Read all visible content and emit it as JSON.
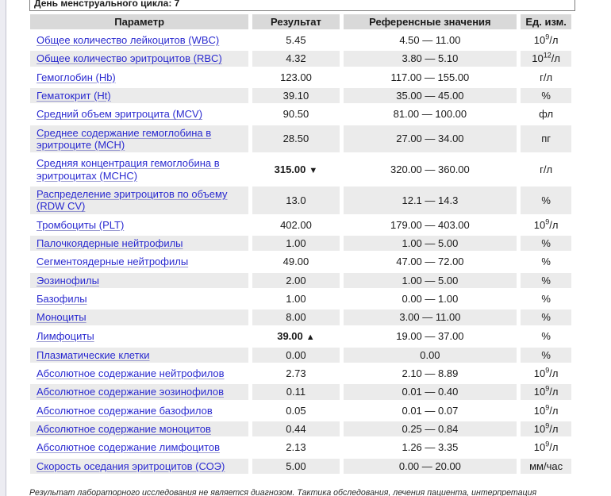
{
  "colors": {
    "link": "#2a2ad0",
    "row_alt": "#ebebeb",
    "header_bg": "#d9d9d9",
    "text": "#1a1a1a"
  },
  "top_note": {
    "text": "День менструального цикла: 7"
  },
  "table": {
    "headers": [
      "Параметр",
      "Результат",
      "Референсные значения",
      "Ед. изм."
    ],
    "rows": [
      {
        "param": "Общее количество лейкоцитов (WBC)",
        "result": "5.45",
        "flag": "",
        "ref": "4.50 — 11.00",
        "unit": "10^{9}/л"
      },
      {
        "param": "Общее количество эритроцитов (RBC)",
        "result": "4.32",
        "flag": "",
        "ref": "3.80 — 5.10",
        "unit": "10^{12}/л"
      },
      {
        "param": "Гемоглобин (Hb)",
        "result": "123.00",
        "flag": "",
        "ref": "117.00 — 155.00",
        "unit": "г/л"
      },
      {
        "param": "Гематокрит (Ht)",
        "result": "39.10",
        "flag": "",
        "ref": "35.00 — 45.00",
        "unit": "%"
      },
      {
        "param": "Средний объем эритроцита (MCV)",
        "result": "90.50",
        "flag": "",
        "ref": "81.00 — 100.00",
        "unit": "фл"
      },
      {
        "param": "Среднее содержание гемоглобина в эритроците (MCH)",
        "result": "28.50",
        "flag": "",
        "ref": "27.00 — 34.00",
        "unit": "пг"
      },
      {
        "param": "Средняя концентрация гемоглобина в эритроцитах (MCHC)",
        "result": "315.00",
        "flag": "▼",
        "ref": "320.00 — 360.00",
        "unit": "г/л"
      },
      {
        "param": "Распределение эритроцитов по объему (RDW CV)",
        "result": "13.0",
        "flag": "",
        "ref": "12.1 — 14.3",
        "unit": "%"
      },
      {
        "param": "Тромбоциты (PLT)",
        "result": "402.00",
        "flag": "",
        "ref": "179.00 — 403.00",
        "unit": "10^{9}/л"
      },
      {
        "param": "Палочкоядерные нейтрофилы",
        "result": "1.00",
        "flag": "",
        "ref": "1.00 — 5.00",
        "unit": "%"
      },
      {
        "param": "Сегментоядерные нейтрофилы",
        "result": "49.00",
        "flag": "",
        "ref": "47.00 — 72.00",
        "unit": "%"
      },
      {
        "param": "Эозинофилы",
        "result": "2.00",
        "flag": "",
        "ref": "1.00 — 5.00",
        "unit": "%"
      },
      {
        "param": "Базофилы",
        "result": "1.00",
        "flag": "",
        "ref": "0.00 — 1.00",
        "unit": "%"
      },
      {
        "param": "Моноциты",
        "result": "8.00",
        "flag": "",
        "ref": "3.00 — 11.00",
        "unit": "%"
      },
      {
        "param": "Лимфоциты",
        "result": "39.00",
        "flag": "▲",
        "ref": "19.00 — 37.00",
        "unit": "%"
      },
      {
        "param": "Плазматические клетки",
        "result": "0.00",
        "flag": "",
        "ref": "0.00",
        "unit": "%"
      },
      {
        "param": "Абсолютное содержание нейтрофилов",
        "result": "2.73",
        "flag": "",
        "ref": "2.10 — 8.89",
        "unit": "10^{9}/л"
      },
      {
        "param": "Абсолютное содержание эозинофилов",
        "result": "0.11",
        "flag": "",
        "ref": "0.01 — 0.40",
        "unit": "10^{9}/л"
      },
      {
        "param": "Абсолютное содержание базофилов",
        "result": "0.05",
        "flag": "",
        "ref": "0.01 — 0.07",
        "unit": "10^{9}/л"
      },
      {
        "param": "Абсолютное содержание моноцитов",
        "result": "0.44",
        "flag": "",
        "ref": "0.25 — 0.84",
        "unit": "10^{9}/л"
      },
      {
        "param": "Абсолютное содержание лимфоцитов",
        "result": "2.13",
        "flag": "",
        "ref": "1.26 — 3.35",
        "unit": "10^{9}/л"
      },
      {
        "param": "Скорость оседания эритроцитов (СОЭ)",
        "result": "5.00",
        "flag": "",
        "ref": "0.00 — 20.00",
        "unit": "мм/час"
      }
    ]
  },
  "footer": {
    "disclaimer": "Результат лабораторного исследования не является диагнозом. Тактика обследования, лечения пациента, интерпретация результатов лабораторных исследований определяется лечащим врачом."
  }
}
